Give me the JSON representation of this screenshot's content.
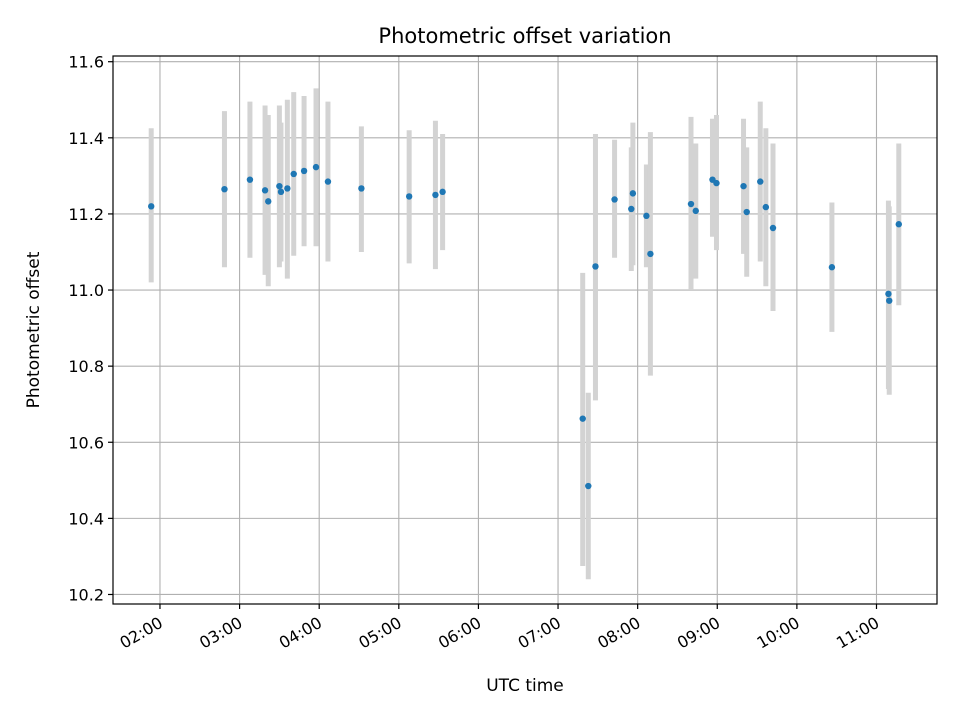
{
  "chart_data": {
    "type": "scatter",
    "title": "Photometric offset variation",
    "xlabel": "UTC time",
    "ylabel": "Photometric offset",
    "x_unit": "UTC hours",
    "xlim": [
      1.41,
      11.76
    ],
    "ylim": [
      10.175,
      11.615
    ],
    "grid": true,
    "legend": "none",
    "x_ticks": [
      {
        "value": 2,
        "label": "02:00"
      },
      {
        "value": 3,
        "label": "03:00"
      },
      {
        "value": 4,
        "label": "04:00"
      },
      {
        "value": 5,
        "label": "05:00"
      },
      {
        "value": 6,
        "label": "06:00"
      },
      {
        "value": 7,
        "label": "07:00"
      },
      {
        "value": 8,
        "label": "08:00"
      },
      {
        "value": 9,
        "label": "09:00"
      },
      {
        "value": 10,
        "label": "10:00"
      },
      {
        "value": 11,
        "label": "11:00"
      }
    ],
    "y_ticks": [
      {
        "value": 10.2,
        "label": "10.2"
      },
      {
        "value": 10.4,
        "label": "10.4"
      },
      {
        "value": 10.6,
        "label": "10.6"
      },
      {
        "value": 10.8,
        "label": "10.8"
      },
      {
        "value": 11.0,
        "label": "11.0"
      },
      {
        "value": 11.2,
        "label": "11.2"
      },
      {
        "value": 11.4,
        "label": "11.4"
      },
      {
        "value": 11.6,
        "label": "11.6"
      }
    ],
    "colors": {
      "points": "#1f77b4",
      "errorbars": "#d3d3d3",
      "grid": "#b0b0b0"
    },
    "points": [
      {
        "x": 1.89,
        "y": 11.22,
        "lo": 11.02,
        "hi": 11.425
      },
      {
        "x": 2.81,
        "y": 11.265,
        "lo": 11.06,
        "hi": 11.47
      },
      {
        "x": 3.13,
        "y": 11.29,
        "lo": 11.085,
        "hi": 11.495
      },
      {
        "x": 3.32,
        "y": 11.262,
        "lo": 11.04,
        "hi": 11.485
      },
      {
        "x": 3.36,
        "y": 11.233,
        "lo": 11.01,
        "hi": 11.46
      },
      {
        "x": 3.5,
        "y": 11.273,
        "lo": 11.06,
        "hi": 11.485
      },
      {
        "x": 3.52,
        "y": 11.258,
        "lo": 11.075,
        "hi": 11.44
      },
      {
        "x": 3.6,
        "y": 11.267,
        "lo": 11.03,
        "hi": 11.5
      },
      {
        "x": 3.68,
        "y": 11.305,
        "lo": 11.09,
        "hi": 11.52
      },
      {
        "x": 3.81,
        "y": 11.313,
        "lo": 11.115,
        "hi": 11.51
      },
      {
        "x": 3.96,
        "y": 11.323,
        "lo": 11.115,
        "hi": 11.53
      },
      {
        "x": 4.11,
        "y": 11.285,
        "lo": 11.075,
        "hi": 11.495
      },
      {
        "x": 4.53,
        "y": 11.267,
        "lo": 11.1,
        "hi": 11.43
      },
      {
        "x": 5.13,
        "y": 11.246,
        "lo": 11.07,
        "hi": 11.42
      },
      {
        "x": 5.46,
        "y": 11.25,
        "lo": 11.055,
        "hi": 11.445
      },
      {
        "x": 5.55,
        "y": 11.258,
        "lo": 11.105,
        "hi": 11.41
      },
      {
        "x": 7.31,
        "y": 10.662,
        "lo": 10.275,
        "hi": 11.045
      },
      {
        "x": 7.38,
        "y": 10.485,
        "lo": 10.24,
        "hi": 10.73
      },
      {
        "x": 7.47,
        "y": 11.062,
        "lo": 10.71,
        "hi": 11.41
      },
      {
        "x": 7.71,
        "y": 11.238,
        "lo": 11.085,
        "hi": 11.395
      },
      {
        "x": 7.92,
        "y": 11.213,
        "lo": 11.05,
        "hi": 11.375
      },
      {
        "x": 7.94,
        "y": 11.254,
        "lo": 11.065,
        "hi": 11.44
      },
      {
        "x": 8.11,
        "y": 11.195,
        "lo": 11.06,
        "hi": 11.33
      },
      {
        "x": 8.16,
        "y": 11.095,
        "lo": 10.775,
        "hi": 11.415
      },
      {
        "x": 8.67,
        "y": 11.226,
        "lo": 11.0,
        "hi": 11.455
      },
      {
        "x": 8.73,
        "y": 11.208,
        "lo": 11.03,
        "hi": 11.385
      },
      {
        "x": 8.94,
        "y": 11.29,
        "lo": 11.14,
        "hi": 11.45
      },
      {
        "x": 8.99,
        "y": 11.281,
        "lo": 11.105,
        "hi": 11.46
      },
      {
        "x": 9.33,
        "y": 11.273,
        "lo": 11.095,
        "hi": 11.45
      },
      {
        "x": 9.37,
        "y": 11.205,
        "lo": 11.035,
        "hi": 11.375
      },
      {
        "x": 9.54,
        "y": 11.285,
        "lo": 11.075,
        "hi": 11.495
      },
      {
        "x": 9.61,
        "y": 11.218,
        "lo": 11.01,
        "hi": 11.425
      },
      {
        "x": 9.7,
        "y": 11.163,
        "lo": 10.945,
        "hi": 11.385
      },
      {
        "x": 10.44,
        "y": 11.06,
        "lo": 10.89,
        "hi": 11.23
      },
      {
        "x": 11.15,
        "y": 10.99,
        "lo": 10.74,
        "hi": 11.235
      },
      {
        "x": 11.16,
        "y": 10.972,
        "lo": 10.725,
        "hi": 11.22
      },
      {
        "x": 11.28,
        "y": 11.173,
        "lo": 10.96,
        "hi": 11.385
      }
    ]
  }
}
